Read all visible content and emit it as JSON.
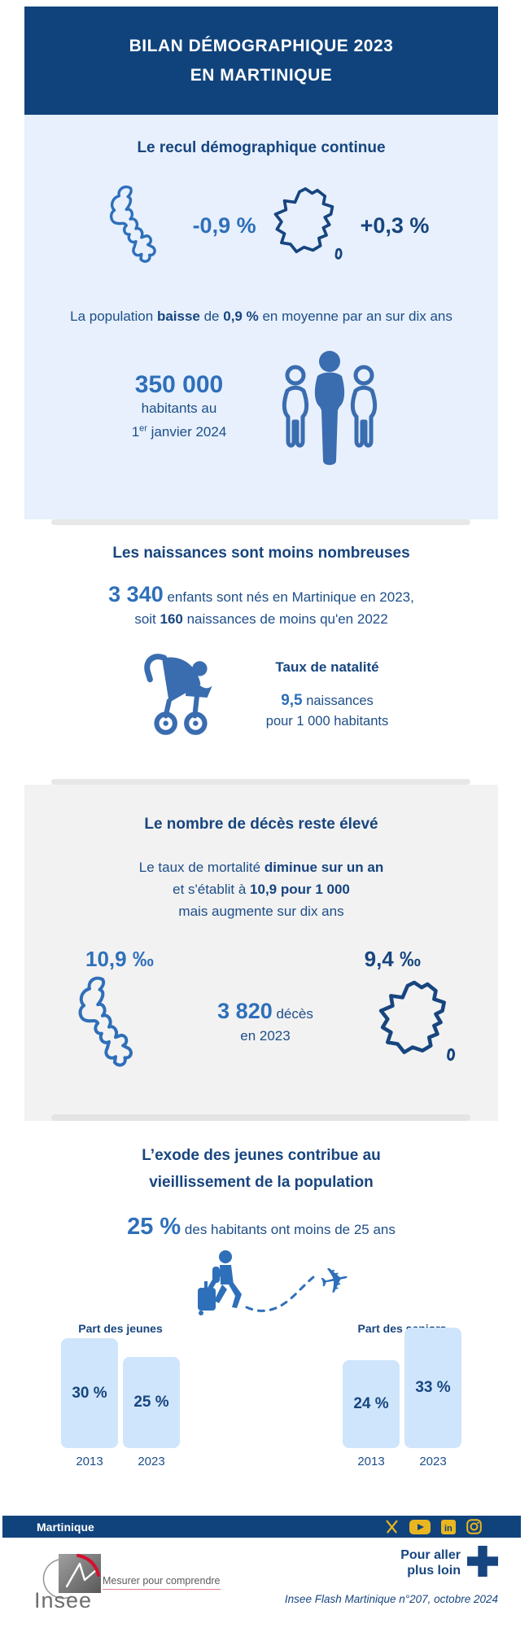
{
  "colors": {
    "navy": "#10437c",
    "text_navy": "#17457f",
    "accent_blue": "#2e6fba",
    "icon_blue": "#3a6cb0",
    "light_blue_panel": "#e7f0fc",
    "gray_panel": "#f2f2f2",
    "bar_fill": "#cfe5fb",
    "social_yellow": "#eab61f"
  },
  "header": {
    "title_line1": "BILAN DÉMOGRAPHIQUE 2023",
    "title_line2": "EN MARTINIQUE"
  },
  "decline": {
    "heading": "Le recul démographique continue",
    "martinique_rate": "-0,9 %",
    "france_rate": "+0,3 %",
    "sentence_pre": "La population ",
    "sentence_bold1": "baisse",
    "sentence_mid": " de ",
    "sentence_bold2": "0,9 %",
    "sentence_post": " en moyenne par an sur dix ans",
    "population": "350 000",
    "population_caption1": "habitants au",
    "population_caption2_num": "1",
    "population_caption2_sup": "er",
    "population_caption2_rest": " janvier 2024"
  },
  "births": {
    "heading": "Les naissances sont moins nombreuses",
    "count": "3 340",
    "line1_rest": " enfants sont nés en Martinique en 2023,",
    "line2_pre": "soit ",
    "line2_bold": "160",
    "line2_post": " naissances de moins qu'en 2022",
    "natality_title": "Taux de natalité",
    "natality_value": "9,5",
    "natality_value_rest": " naissances",
    "natality_line2": "pour 1 000 habitants"
  },
  "deaths": {
    "heading": "Le nombre de décès reste élevé",
    "line1_pre": "Le taux de mortalité ",
    "line1_bold": "diminue sur un an",
    "line2_pre": "et s'établit à ",
    "line2_bold": "10,9 pour 1 000",
    "line3": "mais augmente sur dix ans",
    "martinique_rate": "10,9 ‰",
    "france_rate": "9,4 ‰",
    "count": "3 820",
    "count_label": " décès",
    "count_year": "en 2023"
  },
  "exodus": {
    "heading_line1": "L’exode des jeunes contribue au",
    "heading_line2": "vieillissement de la population",
    "stat": "25 %",
    "stat_rest": " des habitants ont moins de 25 ans"
  },
  "chart_data": [
    {
      "type": "bar",
      "title": "Part des jeunes",
      "categories": [
        "2013",
        "2023"
      ],
      "values": [
        30,
        25
      ],
      "unit": "%",
      "bar_labels": [
        "30 %",
        "25 %"
      ],
      "ylim": [
        0,
        33
      ],
      "grid": false,
      "legend": "none"
    },
    {
      "type": "bar",
      "title": "Part des seniors",
      "categories": [
        "2013",
        "2023"
      ],
      "values": [
        24,
        33
      ],
      "unit": "%",
      "bar_labels": [
        "24 %",
        "33 %"
      ],
      "ylim": [
        0,
        33
      ],
      "grid": false,
      "legend": "none"
    }
  ],
  "icons": {
    "plane_glyph": "✈",
    "linkedin_glyph": "in"
  },
  "footer": {
    "region": "Martinique",
    "social": [
      "x-icon",
      "youtube-icon",
      "linkedin-icon",
      "instagram-icon"
    ],
    "insee_wordmark": "Insee",
    "slogan": "Mesurer pour comprendre",
    "more_line1": "Pour aller",
    "more_line2": "plus loin",
    "citation": "Insee Flash Martinique n°207, octobre 2024"
  }
}
